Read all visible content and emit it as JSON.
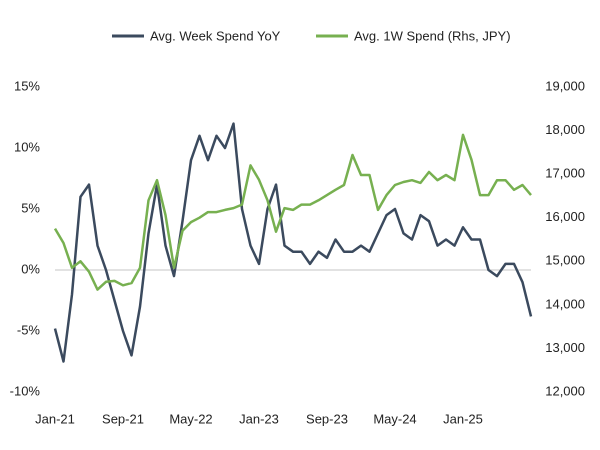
{
  "chart_data": {
    "type": "line",
    "categories": [
      "Jan-21",
      null,
      null,
      null,
      null,
      null,
      null,
      null,
      "Sep-21",
      null,
      null,
      null,
      null,
      null,
      null,
      null,
      "May-22",
      null,
      null,
      null,
      null,
      null,
      null,
      null,
      "Jan-23",
      null,
      null,
      null,
      null,
      null,
      null,
      null,
      "Sep-23",
      null,
      null,
      null,
      null,
      null,
      null,
      null,
      "May-24",
      null,
      null,
      null,
      null,
      null,
      null,
      null,
      "Jan-25",
      null,
      null,
      null,
      null,
      null,
      null,
      null,
      null
    ],
    "series": [
      {
        "name": "Avg. Week Spend YoY",
        "color": "#3b4a5e",
        "axis": "y",
        "values": [
          -4.8,
          -7.5,
          -2,
          6,
          7,
          2,
          0,
          -2.5,
          -5,
          -7,
          -3,
          3,
          7,
          2,
          -0.5,
          4,
          9,
          11,
          9,
          11,
          10,
          12,
          5,
          2,
          0.5,
          5,
          7,
          2,
          1.5,
          1.5,
          0.5,
          1.5,
          1,
          2.5,
          1.5,
          1.5,
          2,
          1.5,
          3,
          4.5,
          5,
          3,
          2.5,
          4.5,
          4,
          2,
          2.5,
          2,
          3.5,
          2.5,
          2.5,
          0,
          -0.5,
          0.5,
          0.5,
          -1,
          -3.8
        ]
      },
      {
        "name": "Avg. 1W Spend (Rhs, JPY)",
        "color": "#77b050",
        "axis": "y2",
        "values": [
          15750,
          15420,
          14850,
          15000,
          14760,
          14350,
          14530,
          14550,
          14450,
          14500,
          14850,
          16400,
          16860,
          16060,
          14850,
          15700,
          15900,
          16000,
          16130,
          16130,
          16180,
          16220,
          16300,
          17200,
          16870,
          16400,
          15680,
          16220,
          16180,
          16300,
          16300,
          16400,
          16520,
          16640,
          16750,
          17440,
          16980,
          16980,
          16180,
          16520,
          16750,
          16820,
          16860,
          16800,
          17050,
          16860,
          16980,
          16860,
          17900,
          17330,
          16520,
          16520,
          16860,
          16860,
          16640,
          16750,
          16520
        ]
      }
    ],
    "ylim": [
      -10,
      15
    ],
    "yticks": [
      {
        "value": -10,
        "label": "-10%"
      },
      {
        "value": -5,
        "label": "-5%"
      },
      {
        "value": 0,
        "label": "0%"
      },
      {
        "value": 5,
        "label": "5%"
      },
      {
        "value": 10,
        "label": "10%"
      },
      {
        "value": 15,
        "label": "15%"
      }
    ],
    "y2lim": [
      12000,
      19000
    ],
    "y2ticks": [
      {
        "value": 12000,
        "label": "12,000"
      },
      {
        "value": 13000,
        "label": "13,000"
      },
      {
        "value": 14000,
        "label": "14,000"
      },
      {
        "value": 15000,
        "label": "15,000"
      },
      {
        "value": 16000,
        "label": "16,000"
      },
      {
        "value": 17000,
        "label": "17,000"
      },
      {
        "value": 18000,
        "label": "18,000"
      },
      {
        "value": 19000,
        "label": "19,000"
      }
    ],
    "grid": false,
    "legend": "top"
  }
}
